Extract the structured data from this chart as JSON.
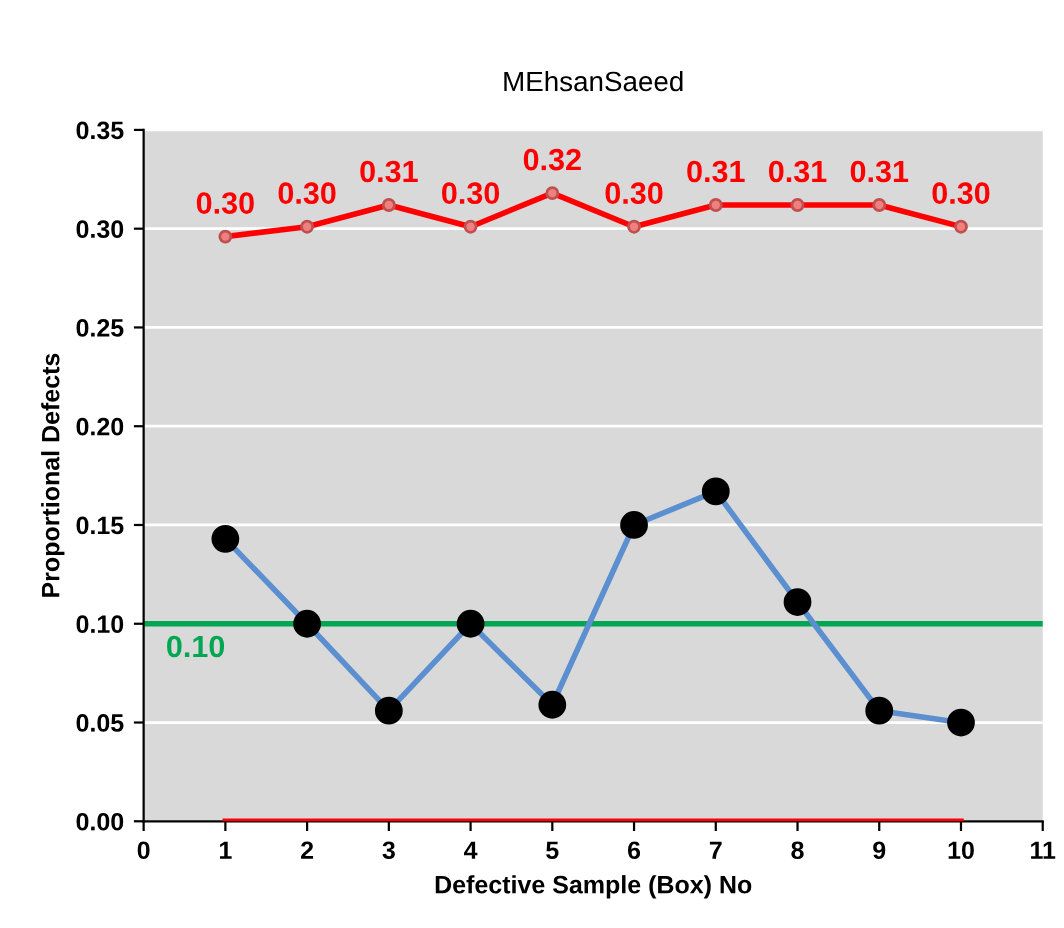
{
  "chart_data": {
    "type": "line",
    "title": "MEhsanSaeed",
    "xlabel": "Defective Sample (Box) No",
    "ylabel": "Proportional Defects",
    "x": [
      1,
      2,
      3,
      4,
      5,
      6,
      7,
      8,
      9,
      10
    ],
    "series": [
      {
        "color": "#ff0000",
        "marker": "circle",
        "values": [
          0.296,
          0.301,
          0.312,
          0.301,
          0.318,
          0.301,
          0.312,
          0.312,
          0.312,
          0.301
        ],
        "value_labels": [
          "0.30",
          "0.30",
          "0.31",
          "0.30",
          "0.32",
          "0.30",
          "0.31",
          "0.31",
          "0.31",
          "0.30"
        ]
      },
      {
        "color": "#5b8fd0",
        "marker": "circle",
        "values": [
          0.143,
          0.1,
          0.056,
          0.1,
          0.059,
          0.15,
          0.167,
          0.111,
          0.056,
          0.05
        ]
      },
      {
        "color": "#ff0000",
        "marker": "none",
        "values": [
          0,
          0,
          0,
          0,
          0,
          0,
          0,
          0,
          0,
          0
        ]
      }
    ],
    "ref_lines": [
      {
        "axis": "y",
        "value": 0.1,
        "label": "0.10",
        "color": "#00a651"
      }
    ],
    "xlim": [
      0,
      11
    ],
    "xticks": [
      0,
      1,
      2,
      3,
      4,
      5,
      6,
      7,
      8,
      9,
      10,
      11
    ],
    "ylim": [
      0,
      0.35
    ],
    "yticks": [
      {
        "value": 0,
        "label": "0.00"
      },
      {
        "value": 0.05,
        "label": "0.05"
      },
      {
        "value": 0.1,
        "label": "0.10"
      },
      {
        "value": 0.15,
        "label": "0.15"
      },
      {
        "value": 0.2,
        "label": "0.20"
      },
      {
        "value": 0.25,
        "label": "0.25"
      },
      {
        "value": 0.3,
        "label": "0.30"
      },
      {
        "value": 0.35,
        "label": "0.35"
      }
    ],
    "grid": "y"
  }
}
